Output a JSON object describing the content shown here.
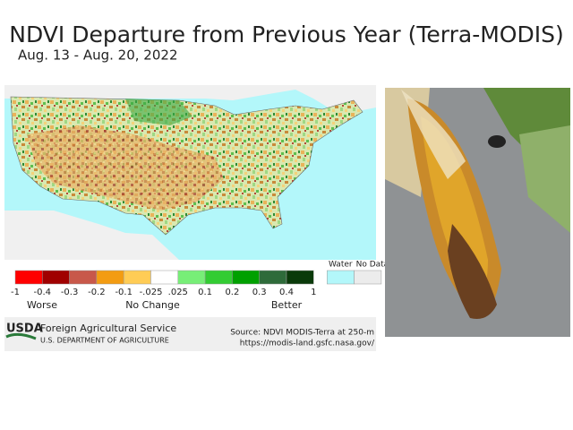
{
  "header": {
    "title": "NDVI Departure from Previous Year (Terra-MODIS)",
    "date": "Aug. 13 - Aug. 20, 2022"
  },
  "legend": {
    "ticks": [
      "-1",
      "-0.4",
      "-0.3",
      "-0.2",
      "-0.1",
      "-.025",
      ".025",
      "0.1",
      "0.2",
      "0.3",
      "0.4",
      "1"
    ],
    "colors": [
      "#ff0000",
      "#a00000",
      "#c8584a",
      "#f39c12",
      "#ffcc55",
      "#ffffff",
      "#77ee77",
      "#33cc33",
      "#00a000",
      "#2e6b3a",
      "#0a3a0a"
    ],
    "water": {
      "label": "Water",
      "color": "#b3f7fa"
    },
    "no_data": {
      "label": "No Data",
      "color": "#ececec"
    },
    "captions": [
      "Worse",
      "No Change",
      "Better"
    ]
  },
  "footer": {
    "logo": "USDA",
    "agency": "Foreign Agricultural Service",
    "department": "U.S. DEPARTMENT OF AGRICULTURE",
    "source": "Source: NDVI MODIS-Terra at 250-m",
    "url": "https://modis-land.gsfc.nasa.gov/"
  }
}
